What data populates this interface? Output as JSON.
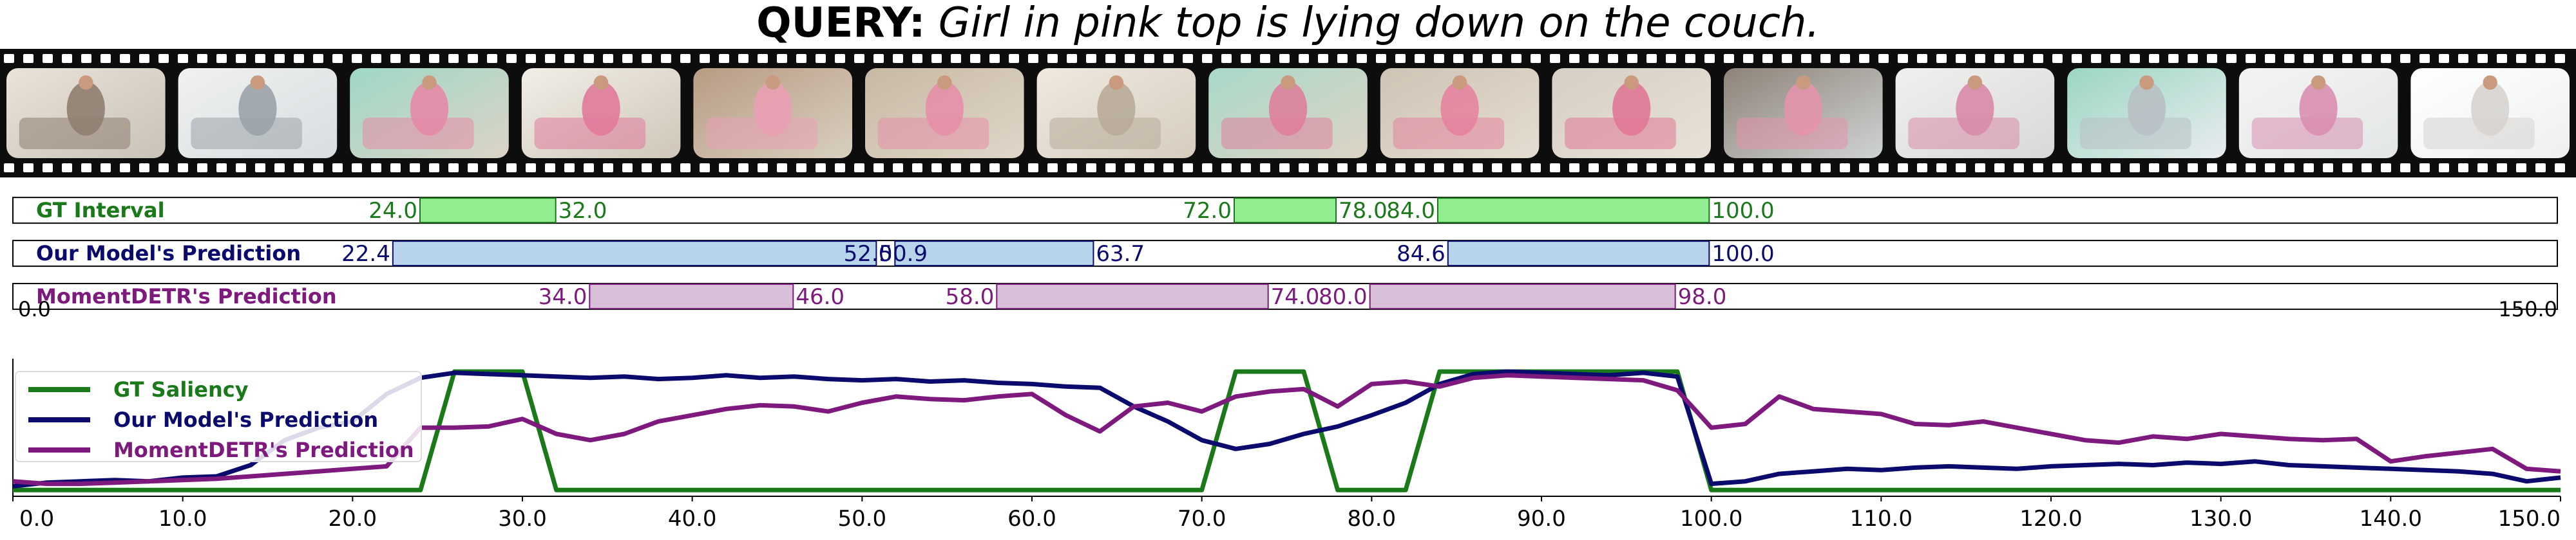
{
  "query": {
    "label": "QUERY:",
    "text": "Girl in pink top is lying down on the couch."
  },
  "filmstrip": {
    "frame_count": 15,
    "frames": [
      {
        "scene": "living-room-table",
        "colors": [
          "#c9c2b8",
          "#8e7e70",
          "#e9e3da"
        ]
      },
      {
        "scene": "glass-cabinet",
        "colors": [
          "#d8dde0",
          "#9aa3a8",
          "#f0f1f0"
        ]
      },
      {
        "scene": "girl-by-couch",
        "colors": [
          "#dcd3c6",
          "#e58aa6",
          "#9fd8c6"
        ]
      },
      {
        "scene": "girl-near-door",
        "colors": [
          "#cfc6b8",
          "#e07a9a",
          "#f2efe8"
        ]
      },
      {
        "scene": "girl-close-up",
        "colors": [
          "#d9cfc0",
          "#e9a0b4",
          "#b89c84"
        ]
      },
      {
        "scene": "couch-and-girl",
        "colors": [
          "#e0d6c8",
          "#e68fa8",
          "#c8b9a4"
        ]
      },
      {
        "scene": "empty-couch",
        "colors": [
          "#d6cdbf",
          "#b8ab99",
          "#efe9df"
        ]
      },
      {
        "scene": "girl-on-couch-far",
        "colors": [
          "#ddd3c5",
          "#de7f9c",
          "#a9d9c8"
        ]
      },
      {
        "scene": "girl-lying-on-couch",
        "colors": [
          "#e4ddd1",
          "#e5839f",
          "#cfc4b4"
        ]
      },
      {
        "scene": "girl-on-couch-wide",
        "colors": [
          "#e7e1d7",
          "#e07896",
          "#d6cfc3"
        ]
      },
      {
        "scene": "dining-room",
        "colors": [
          "#cfd3d4",
          "#e394ab",
          "#8e8378"
        ]
      },
      {
        "scene": "woman-in-dress",
        "colors": [
          "#d7d9d9",
          "#d88aa8",
          "#f1f0ee"
        ]
      },
      {
        "scene": "bright-living-room",
        "colors": [
          "#e9ecee",
          "#b8c0c4",
          "#9bd6c4"
        ]
      },
      {
        "scene": "woman-floral-dress",
        "colors": [
          "#e3e6e7",
          "#d98eb0",
          "#f4f4f2"
        ]
      },
      {
        "scene": "bright-window",
        "colors": [
          "#eef0f0",
          "#d7d4cf",
          "#ffffff"
        ]
      }
    ]
  },
  "chart_data": [
    {
      "type": "interval",
      "xlim": [
        0.0,
        150.0
      ],
      "axis_start_label": "0.0",
      "axis_end_label": "150.0",
      "rows": [
        {
          "name": "GT Interval",
          "color": "#1a7a1a",
          "fill": "#90ee90",
          "edge": "#1a7a1a",
          "intervals": [
            [
              24.0,
              32.0
            ],
            [
              72.0,
              78.0
            ],
            [
              84.0,
              100.0
            ]
          ],
          "labels": [
            {
              "x": 24.0,
              "text": "24.0",
              "side": "left"
            },
            {
              "x": 32.0,
              "text": "32.0",
              "side": "right"
            },
            {
              "x": 72.0,
              "text": "72.0",
              "side": "left"
            },
            {
              "x": 78.0,
              "text": "78.0",
              "side": "right"
            },
            {
              "x": 84.0,
              "text": "84.0",
              "side": "left"
            },
            {
              "x": 100.0,
              "text": "100.0",
              "side": "right"
            }
          ]
        },
        {
          "name": "Our Model's Prediction",
          "color": "#0b0b6e",
          "fill": "#b7d4ea",
          "edge": "#0b0b6e",
          "intervals": [
            [
              22.4,
              50.9
            ],
            [
              52.0,
              63.7
            ],
            [
              84.6,
              100.0
            ]
          ],
          "labels": [
            {
              "x": 22.4,
              "text": "22.4",
              "side": "left"
            },
            {
              "x": 50.9,
              "text": "50.9",
              "side": "right"
            },
            {
              "x": 52.0,
              "text": "52.0",
              "side": "left"
            },
            {
              "x": 63.7,
              "text": "63.7",
              "side": "right"
            },
            {
              "x": 84.6,
              "text": "84.6",
              "side": "left"
            },
            {
              "x": 100.0,
              "text": "100.0",
              "side": "right"
            }
          ]
        },
        {
          "name": "MomentDETR's Prediction",
          "color": "#7e1a7e",
          "fill": "#d8bfd8",
          "edge": "#7e1a7e",
          "intervals": [
            [
              34.0,
              46.0
            ],
            [
              58.0,
              74.0
            ],
            [
              80.0,
              98.0
            ]
          ],
          "labels": [
            {
              "x": 34.0,
              "text": "34.0",
              "side": "left"
            },
            {
              "x": 46.0,
              "text": "46.0",
              "side": "right"
            },
            {
              "x": 58.0,
              "text": "58.0",
              "side": "left"
            },
            {
              "x": 74.0,
              "text": "74.0",
              "side": "right"
            },
            {
              "x": 80.0,
              "text": "80.0",
              "side": "left"
            },
            {
              "x": 98.0,
              "text": "98.0",
              "side": "right"
            }
          ]
        }
      ]
    },
    {
      "type": "line",
      "xlim": [
        0.0,
        150.0
      ],
      "ylim": [
        0.0,
        1.0
      ],
      "x_ticks": [
        0,
        10,
        20,
        30,
        40,
        50,
        60,
        70,
        80,
        90,
        100,
        110,
        120,
        130,
        140,
        150
      ],
      "x_tick_labels": [
        "0.0",
        "10.0",
        "20.0",
        "30.0",
        "40.0",
        "50.0",
        "60.0",
        "70.0",
        "80.0",
        "90.0",
        "100.0",
        "110.0",
        "120.0",
        "130.0",
        "140.0",
        "150.0"
      ],
      "legend_position": "top-left",
      "grid": false,
      "series": [
        {
          "name": "GT Saliency",
          "color": "#1a7a1a",
          "x": [
            0,
            24,
            26,
            30,
            32,
            70,
            72,
            76,
            78,
            82,
            84,
            98,
            100,
            150
          ],
          "y": [
            0.05,
            0.05,
            1.0,
            1.0,
            0.05,
            0.05,
            1.0,
            1.0,
            0.05,
            0.05,
            1.0,
            1.0,
            0.05,
            0.05
          ]
        },
        {
          "name": "Our Model's Prediction",
          "color": "#0b0b6e",
          "x": [
            0,
            2,
            4,
            6,
            8,
            10,
            12,
            14,
            16,
            18,
            20,
            22,
            24,
            26,
            28,
            30,
            32,
            34,
            36,
            38,
            40,
            42,
            44,
            46,
            48,
            50,
            52,
            54,
            56,
            58,
            60,
            62,
            64,
            66,
            68,
            70,
            72,
            74,
            76,
            78,
            80,
            82,
            84,
            86,
            88,
            90,
            92,
            94,
            96,
            98,
            100,
            102,
            104,
            106,
            108,
            110,
            112,
            114,
            116,
            118,
            120,
            122,
            124,
            126,
            128,
            130,
            132,
            134,
            136,
            138,
            140,
            142,
            144,
            146,
            148,
            150
          ],
          "y": [
            0.08,
            0.11,
            0.12,
            0.13,
            0.12,
            0.15,
            0.16,
            0.25,
            0.45,
            0.55,
            0.6,
            0.82,
            0.95,
            0.99,
            0.98,
            0.97,
            0.96,
            0.95,
            0.96,
            0.94,
            0.95,
            0.97,
            0.95,
            0.96,
            0.94,
            0.93,
            0.94,
            0.92,
            0.93,
            0.91,
            0.9,
            0.88,
            0.87,
            0.72,
            0.6,
            0.45,
            0.38,
            0.42,
            0.5,
            0.56,
            0.65,
            0.75,
            0.9,
            0.98,
            1.0,
            0.99,
            0.98,
            0.97,
            0.99,
            0.96,
            0.1,
            0.12,
            0.18,
            0.2,
            0.22,
            0.21,
            0.23,
            0.24,
            0.23,
            0.22,
            0.24,
            0.25,
            0.26,
            0.25,
            0.27,
            0.26,
            0.28,
            0.25,
            0.24,
            0.23,
            0.22,
            0.21,
            0.2,
            0.18,
            0.12,
            0.15
          ]
        },
        {
          "name": "MomentDETR's Prediction",
          "color": "#7e1a7e",
          "x": [
            0,
            2,
            4,
            6,
            8,
            10,
            12,
            14,
            16,
            18,
            20,
            22,
            24,
            26,
            28,
            30,
            32,
            34,
            36,
            38,
            40,
            42,
            44,
            46,
            48,
            50,
            52,
            54,
            56,
            58,
            60,
            62,
            64,
            66,
            68,
            70,
            72,
            74,
            76,
            78,
            80,
            82,
            84,
            86,
            88,
            90,
            92,
            94,
            96,
            98,
            100,
            102,
            104,
            106,
            108,
            110,
            112,
            114,
            116,
            118,
            120,
            122,
            124,
            126,
            128,
            130,
            132,
            134,
            136,
            138,
            140,
            142,
            144,
            146,
            148,
            150
          ],
          "y": [
            0.12,
            0.1,
            0.1,
            0.11,
            0.12,
            0.13,
            0.14,
            0.16,
            0.18,
            0.2,
            0.22,
            0.24,
            0.55,
            0.55,
            0.56,
            0.62,
            0.5,
            0.45,
            0.5,
            0.6,
            0.65,
            0.7,
            0.73,
            0.72,
            0.68,
            0.75,
            0.8,
            0.78,
            0.77,
            0.8,
            0.82,
            0.65,
            0.52,
            0.72,
            0.75,
            0.68,
            0.8,
            0.84,
            0.86,
            0.72,
            0.9,
            0.92,
            0.88,
            0.95,
            0.97,
            0.96,
            0.95,
            0.94,
            0.93,
            0.85,
            0.55,
            0.58,
            0.8,
            0.7,
            0.68,
            0.66,
            0.58,
            0.57,
            0.6,
            0.55,
            0.5,
            0.45,
            0.43,
            0.48,
            0.46,
            0.5,
            0.48,
            0.46,
            0.45,
            0.46,
            0.28,
            0.32,
            0.35,
            0.38,
            0.22,
            0.2
          ]
        }
      ]
    }
  ]
}
